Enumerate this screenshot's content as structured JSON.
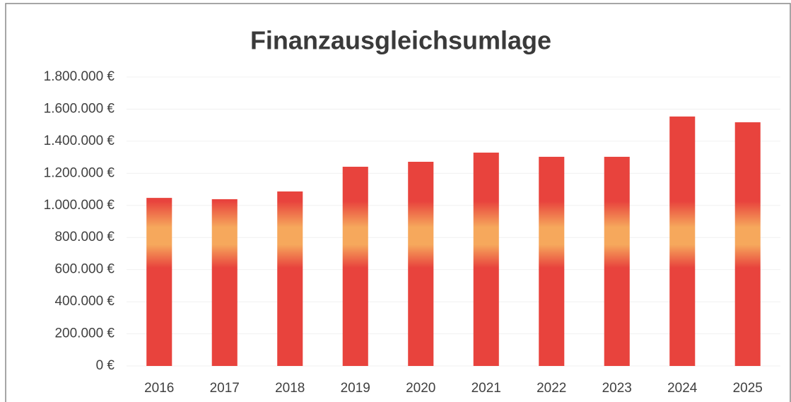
{
  "chart_data": {
    "type": "bar",
    "title": "Finanzausgleichsumlage",
    "categories": [
      "2016",
      "2017",
      "2018",
      "2019",
      "2020",
      "2021",
      "2022",
      "2023",
      "2024",
      "2025"
    ],
    "values": [
      1047000,
      1039000,
      1087000,
      1241000,
      1272000,
      1329000,
      1303000,
      1303000,
      1554000,
      1518000
    ],
    "color": "#e8433d",
    "gradient_color": "#f6a85c",
    "ylim": [
      0,
      1800000
    ],
    "yticks": [
      {
        "value": 0,
        "label": "0 €"
      },
      {
        "value": 200000,
        "label": "200.000 €"
      },
      {
        "value": 400000,
        "label": "400.000 €"
      },
      {
        "value": 600000,
        "label": "600.000 €"
      },
      {
        "value": 800000,
        "label": "800.000 €"
      },
      {
        "value": 1000000,
        "label": "1.000.000 €"
      },
      {
        "value": 1200000,
        "label": "1.200.000 €"
      },
      {
        "value": 1400000,
        "label": "1.400.000 €"
      },
      {
        "value": 1600000,
        "label": "1.600.000 €"
      },
      {
        "value": 1800000,
        "label": "1.800.000 €"
      }
    ],
    "grid": true
  }
}
